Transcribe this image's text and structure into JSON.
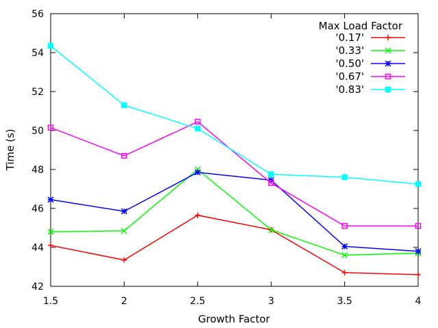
{
  "chart_data": {
    "type": "line",
    "xlabel": "Growth Factor",
    "ylabel": "Time (s)",
    "xlim": [
      1.5,
      4
    ],
    "ylim": [
      42,
      56
    ],
    "xticks": [
      "1.5",
      "2",
      "2.5",
      "3",
      "3.5",
      "4"
    ],
    "yticks": [
      "42",
      "44",
      "46",
      "48",
      "50",
      "52",
      "54",
      "56"
    ],
    "x": [
      1.5,
      2,
      2.5,
      3,
      3.5,
      4
    ],
    "legend_title": "Max Load Factor",
    "legend_position": "top-right",
    "grid": false,
    "series": [
      {
        "name": "'0.17'",
        "color": "#ff0000",
        "marker": "plus",
        "values": [
          44.1,
          43.35,
          45.65,
          44.9,
          42.7,
          42.6
        ]
      },
      {
        "name": "'0.33'",
        "color": "#00ff00",
        "marker": "x",
        "values": [
          44.8,
          44.85,
          48.0,
          44.9,
          43.6,
          43.7
        ]
      },
      {
        "name": "'0.50'",
        "color": "#0000ff",
        "marker": "star",
        "values": [
          46.45,
          45.85,
          47.85,
          47.45,
          44.05,
          43.8
        ]
      },
      {
        "name": "'0.67'",
        "color": "#ff00ff",
        "marker": "open-square",
        "values": [
          50.15,
          48.7,
          50.45,
          47.3,
          45.1,
          45.1
        ]
      },
      {
        "name": "'0.83'",
        "color": "#00ffff",
        "marker": "filled-square",
        "values": [
          54.35,
          51.3,
          50.1,
          47.75,
          47.6,
          47.25
        ]
      }
    ]
  }
}
